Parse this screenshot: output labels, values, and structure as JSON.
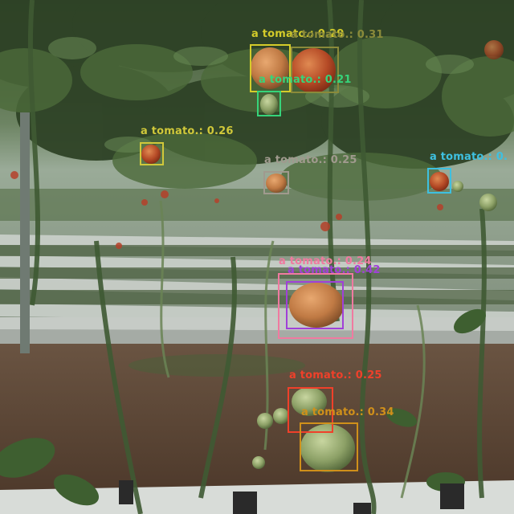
{
  "image": {
    "description_colors": {
      "foliage_dark": "#2b3a22",
      "foliage_mid": "#4f6b3c",
      "sky_haze": "#aab8a8",
      "soil": "#5a4434",
      "plastic_mulch": "#c8ccc8",
      "tomato_red": "#b5412a",
      "tomato_green": "#8a9a55"
    }
  },
  "detections": [
    {
      "label": "a tomato.: 0.29",
      "score": 0.29,
      "color": "#d4cc2a"
    },
    {
      "label": "a tomato.: 0.31",
      "score": 0.31,
      "color": "#8a8a3a"
    },
    {
      "label": "a tomato.: 0.21",
      "score": 0.21,
      "color": "#36d47a"
    },
    {
      "label": "a tomato.: 0.26",
      "score": 0.26,
      "color": "#d0c83a"
    },
    {
      "label": "a tomato.: 0.25",
      "score": 0.25,
      "color": "#a09a8e"
    },
    {
      "label": "a tomato.: 0.",
      "score": null,
      "color": "#3ec0e0"
    },
    {
      "label": "a tomato.: 0.24",
      "score": 0.24,
      "color": "#f07aa0"
    },
    {
      "label": "a tomato.: 0.42",
      "score": 0.42,
      "color": "#a040d8"
    },
    {
      "label": "a tomato.: 0.25",
      "score": 0.25,
      "color": "#f0402a"
    },
    {
      "label": "a tomato.: 0.34",
      "score": 0.34,
      "color": "#d0901a"
    }
  ]
}
